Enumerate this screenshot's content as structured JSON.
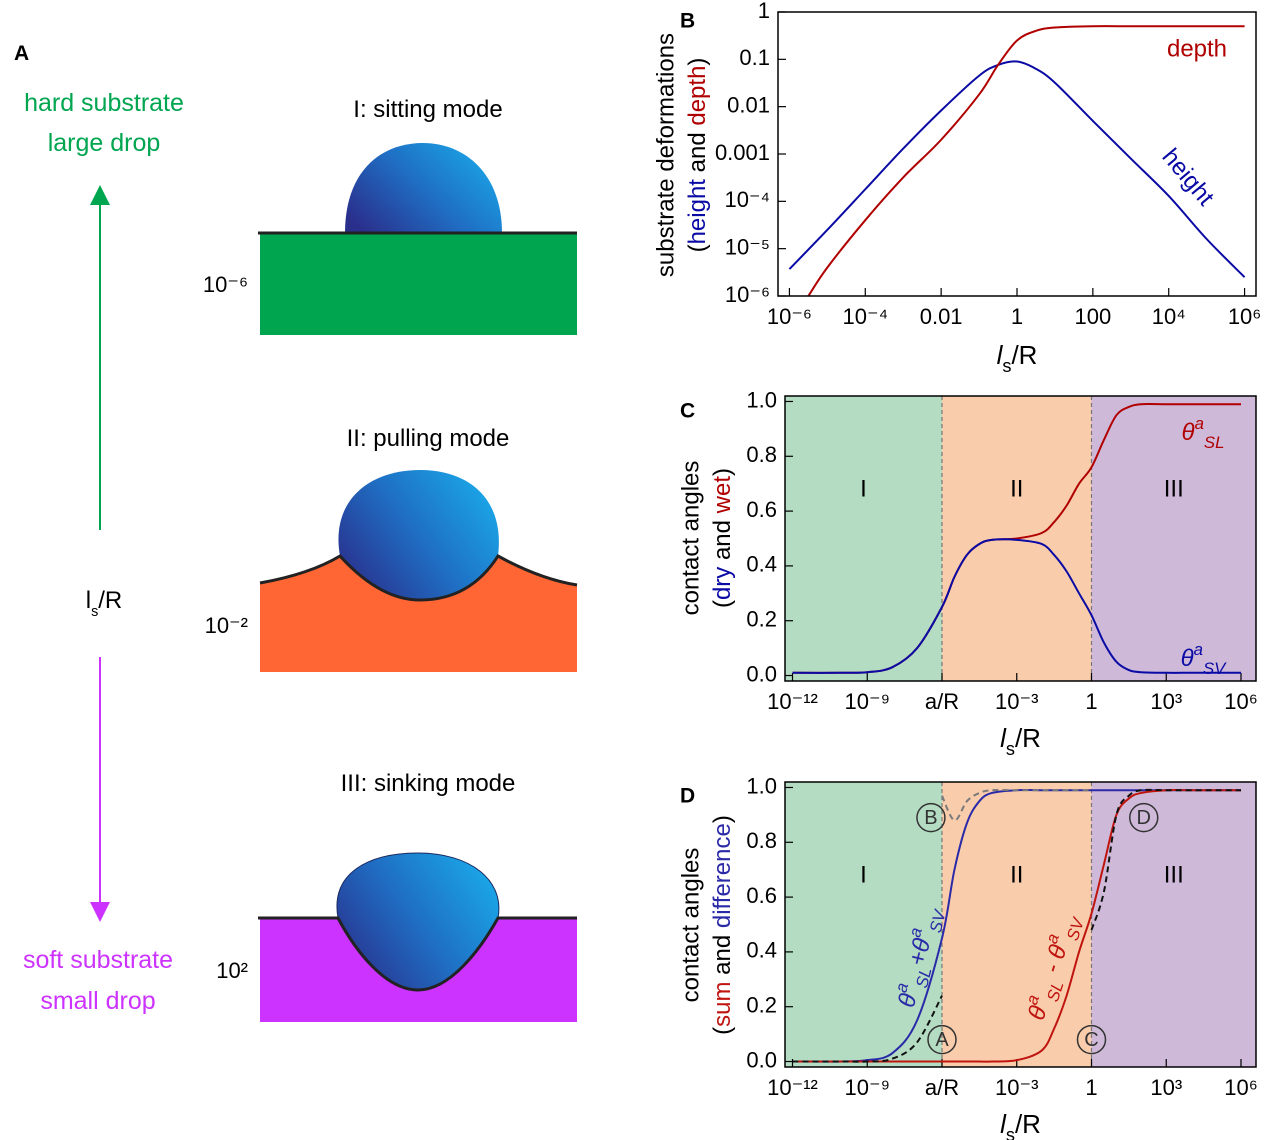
{
  "panel_a": {
    "label": "A",
    "top_text": [
      "hard substrate",
      "large drop"
    ],
    "axis_label": [
      "l",
      "s",
      "/R"
    ],
    "bottom_text": [
      "soft substrate",
      "small drop"
    ],
    "modes": [
      {
        "title": "I: sitting mode",
        "scale": "10⁻⁶"
      },
      {
        "title": "II: pulling mode",
        "scale": "10⁻²"
      },
      {
        "title": "III: sinking mode",
        "scale": "10²"
      }
    ]
  },
  "chart_data": [
    {
      "type": "line",
      "panel_label": "B",
      "xscale": "log",
      "yscale": "log",
      "ylabel": [
        "substrate deformations",
        "(",
        "height",
        " and ",
        "depth",
        ")"
      ],
      "xlabel": [
        "l",
        "s",
        "/R"
      ],
      "xlim": [
        5e-07,
        2000000
      ],
      "ylim": [
        1e-06,
        1
      ],
      "xticks": [
        {
          "value": 1e-06,
          "label": "10⁻⁶"
        },
        {
          "value": 0.0001,
          "label": "10⁻⁴"
        },
        0.01,
        1,
        100,
        {
          "value": 10000,
          "label": "10⁴"
        },
        {
          "value": 1000000,
          "label": "10⁶"
        }
      ],
      "yticks": [
        {
          "value": 1e-06,
          "label": "10⁻⁶"
        },
        {
          "value": 1e-05,
          "label": "10⁻⁵"
        },
        {
          "value": 0.0001,
          "label": "10⁻⁴"
        },
        0.001,
        0.01,
        0.1,
        1
      ],
      "series": [
        {
          "name": "height",
          "color": "#0a0aa5",
          "x": [
            1e-06,
            1e-05,
            0.0001,
            0.001,
            0.01,
            0.1,
            0.316,
            1,
            3.16,
            10,
            100,
            1000,
            10000,
            100000,
            1000000
          ],
          "values": [
            3.7e-06,
            2.5e-05,
            0.00018,
            0.0013,
            0.0083,
            0.045,
            0.076,
            0.09,
            0.063,
            0.032,
            0.005,
            0.0008,
            0.00013,
            1.6e-05,
            2.5e-06
          ]
        },
        {
          "name": "depth",
          "color": "#b00000",
          "x": [
            3.16e-06,
            1e-05,
            0.0001,
            0.001,
            0.01,
            0.1,
            0.316,
            1,
            3.16,
            10,
            100,
            1000,
            10000,
            100000,
            1000000
          ],
          "values": [
            1e-06,
            4e-06,
            4e-05,
            0.00032,
            0.002,
            0.018,
            0.076,
            0.25,
            0.4,
            0.47,
            0.5,
            0.5,
            0.5,
            0.5,
            0.5
          ]
        }
      ]
    },
    {
      "type": "line",
      "panel_label": "C",
      "xscale": "log",
      "yscale": "linear",
      "ylabel": [
        "contact angles",
        "(",
        "dry",
        " and ",
        "wet",
        ")"
      ],
      "xlabel": [
        "l",
        "s",
        "/R"
      ],
      "xlim": [
        5e-13,
        4000000
      ],
      "ylim": [
        -0.02,
        1.02
      ],
      "xticks": [
        {
          "value": 1e-12,
          "label": "10⁻¹²"
        },
        {
          "value": 1e-09,
          "label": "10⁻⁹"
        },
        {
          "value": 1e-06,
          "label": "a/R"
        },
        {
          "value": 0.001,
          "label": "10⁻³"
        },
        1,
        {
          "value": 1000,
          "label": "10³"
        },
        {
          "value": 1000000,
          "label": "10⁶"
        }
      ],
      "yticks": [
        {
          "value": 0,
          "label": "0.0"
        },
        0.2,
        0.4,
        0.6,
        0.8,
        {
          "value": 1,
          "label": "1.0"
        }
      ],
      "region_bounds": [
        1e-06,
        1
      ],
      "regions": [
        {
          "label": "I",
          "color": "#b4dcc2"
        },
        {
          "label": "II",
          "color": "#f9ccac"
        },
        {
          "label": "III",
          "color": "#cfb9d9"
        }
      ],
      "x": [
        1e-12,
        1e-10,
        1e-09,
        1e-08,
        1e-07,
        1e-06,
        3.16e-06,
        1e-05,
        3.16e-05,
        0.0001,
        0.001,
        0.01,
        0.0316,
        0.1,
        0.316,
        1,
        3.16,
        10,
        31.6,
        100,
        1000,
        10000,
        100000,
        1000000
      ],
      "series": [
        {
          "label": [
            "θ",
            "a",
            "SL"
          ],
          "color": "#b00000",
          "values": [
            0.01,
            0.01,
            0.012,
            0.03,
            0.1,
            0.25,
            0.36,
            0.44,
            0.48,
            0.495,
            0.5,
            0.52,
            0.56,
            0.62,
            0.7,
            0.76,
            0.86,
            0.95,
            0.98,
            0.99,
            0.99,
            0.99,
            0.99,
            0.99
          ]
        },
        {
          "label": [
            "θ",
            "a",
            "SV"
          ],
          "color": "#0a0aa5",
          "values": [
            0.01,
            0.01,
            0.012,
            0.03,
            0.1,
            0.25,
            0.36,
            0.44,
            0.48,
            0.495,
            0.495,
            0.48,
            0.44,
            0.38,
            0.3,
            0.22,
            0.12,
            0.05,
            0.02,
            0.012,
            0.01,
            0.01,
            0.01,
            0.01
          ]
        }
      ]
    },
    {
      "type": "line",
      "panel_label": "D",
      "xscale": "log",
      "yscale": "linear",
      "ylabel": [
        "contact angles",
        "(",
        "sum",
        " and ",
        "difference",
        ")"
      ],
      "xlabel": [
        "l",
        "s",
        "/R"
      ],
      "xlim": [
        5e-13,
        4000000
      ],
      "ylim": [
        -0.02,
        1.02
      ],
      "xticks": [
        {
          "value": 1e-12,
          "label": "10⁻¹²"
        },
        {
          "value": 1e-09,
          "label": "10⁻⁹"
        },
        {
          "value": 1e-06,
          "label": "a/R"
        },
        {
          "value": 0.001,
          "label": "10⁻³"
        },
        1,
        {
          "value": 1000,
          "label": "10³"
        },
        {
          "value": 1000000,
          "label": "10⁶"
        }
      ],
      "yticks": [
        {
          "value": 0,
          "label": "0.0"
        },
        0.2,
        0.4,
        0.6,
        0.8,
        {
          "value": 1,
          "label": "1.0"
        }
      ],
      "region_bounds": [
        1e-06,
        1
      ],
      "regions": [
        {
          "label": "I",
          "color": "#b4dcc2"
        },
        {
          "label": "II",
          "color": "#f9ccac"
        },
        {
          "label": "III",
          "color": "#cfb9d9"
        }
      ],
      "x": [
        1e-12,
        1e-10,
        1e-09,
        1e-08,
        1e-07,
        1e-06,
        3.16e-06,
        1e-05,
        3.16e-05,
        0.0001,
        0.001,
        0.01,
        0.0316,
        0.1,
        0.316,
        1,
        3.16,
        10,
        31.6,
        100,
        1000,
        10000,
        100000,
        1000000
      ],
      "series": [
        {
          "label": [
            "θ",
            "a",
            "SL",
            "+",
            "θ",
            "a",
            "SV"
          ],
          "color": "#2a2aa8",
          "values": [
            0,
            0,
            0.005,
            0.03,
            0.15,
            0.45,
            0.7,
            0.87,
            0.95,
            0.98,
            0.99,
            0.99,
            0.99,
            0.99,
            0.99,
            0.99,
            0.99,
            0.99,
            0.99,
            0.99,
            0.99,
            0.99,
            0.99,
            0.99
          ]
        },
        {
          "label": [
            "θ",
            "a",
            "SL",
            " - ",
            "θ",
            "a",
            "SV"
          ],
          "color": "#c0140f",
          "values": [
            0,
            0,
            0,
            0,
            0,
            0,
            0,
            0,
            0,
            0,
            0.005,
            0.04,
            0.12,
            0.24,
            0.4,
            0.54,
            0.72,
            0.9,
            0.96,
            0.98,
            0.99,
            0.99,
            0.99,
            0.99
          ]
        },
        {
          "color": "#111111",
          "dash": true,
          "values": [
            0,
            0,
            0,
            0.01,
            0.07,
            0.24,
            null,
            null,
            null,
            null,
            null,
            null,
            null,
            null,
            null,
            null,
            null,
            null,
            null,
            null,
            null,
            null,
            null,
            null
          ]
        },
        {
          "color": "#7a7a7a",
          "dash": true,
          "values": [
            null,
            null,
            null,
            null,
            null,
            0.97,
            0.88,
            0.95,
            0.98,
            0.99,
            0.99,
            0.99,
            0.99,
            0.99,
            0.99,
            0.99,
            null,
            null,
            null,
            null,
            null,
            null,
            null,
            null
          ]
        },
        {
          "color": "#111111",
          "dash": true,
          "values": [
            null,
            null,
            null,
            null,
            null,
            null,
            null,
            null,
            null,
            null,
            null,
            null,
            null,
            null,
            null,
            0.48,
            0.62,
            0.9,
            0.97,
            0.99,
            0.99,
            0.99,
            0.99,
            0.99
          ]
        }
      ],
      "annotations": [
        {
          "text": "A",
          "x": 1e-06,
          "y": 0.08
        },
        {
          "text": "B",
          "x": 3.6e-07,
          "y": 0.89
        },
        {
          "text": "C",
          "x": 1,
          "y": 0.08
        },
        {
          "text": "D",
          "x": 125,
          "y": 0.89
        }
      ]
    }
  ]
}
